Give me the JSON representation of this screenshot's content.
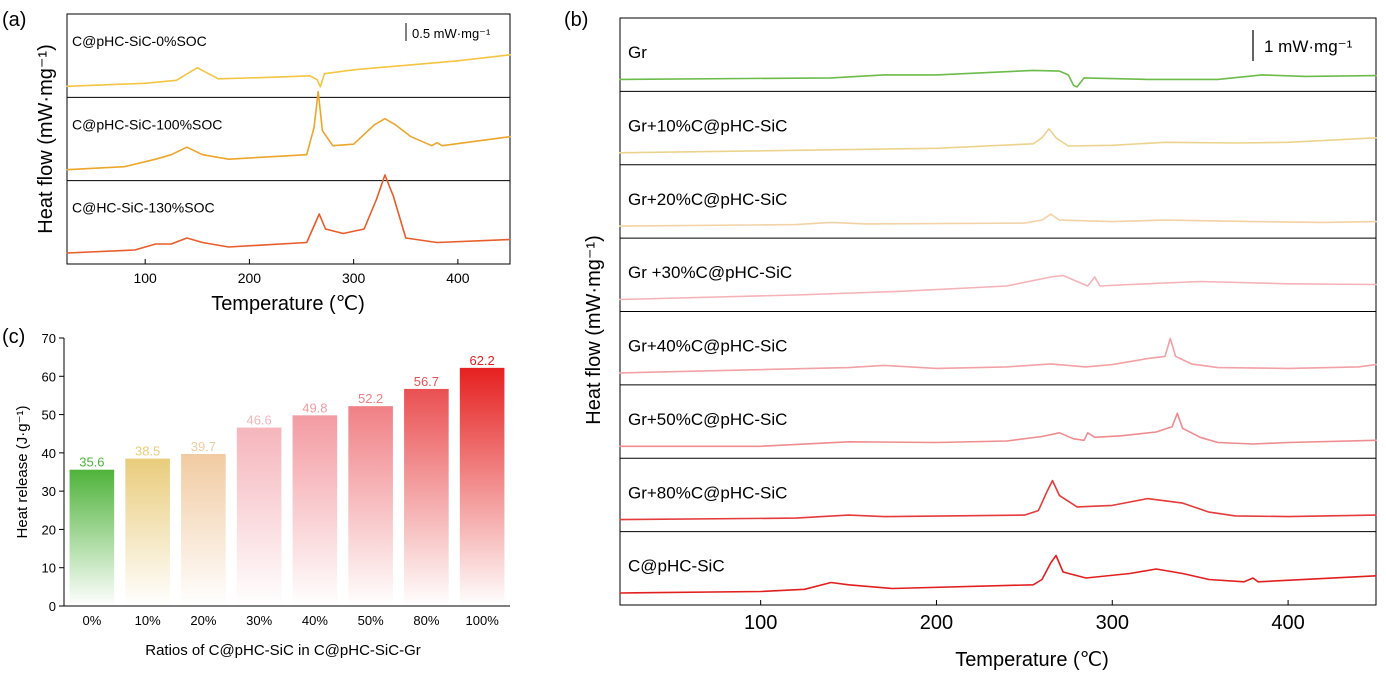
{
  "chart_data": [
    {
      "panel": "(a)",
      "type": "line",
      "xlabel": "Temperature (℃)",
      "ylabel": "Heat flow (mW·mg⁻¹)",
      "xlim": [
        25,
        450
      ],
      "xticks": [
        100,
        200,
        300,
        400
      ],
      "scale_bar": "0.5 mW·mg⁻¹",
      "series": [
        {
          "name": "C@pHC-SiC-0%SOC",
          "color": "#f5c443",
          "points": [
            [
              25,
              0.0
            ],
            [
              100,
              0.1
            ],
            [
              130,
              0.2
            ],
            [
              150,
              0.62
            ],
            [
              170,
              0.25
            ],
            [
              220,
              0.3
            ],
            [
              258,
              0.35
            ],
            [
              265,
              0.22
            ],
            [
              268,
              -0.02
            ],
            [
              272,
              0.42
            ],
            [
              300,
              0.55
            ],
            [
              350,
              0.7
            ],
            [
              400,
              0.85
            ],
            [
              450,
              1.05
            ]
          ]
        },
        {
          "name": "C@pHC-SiC-100%SOC",
          "color": "#eda52a",
          "points": [
            [
              25,
              0.0
            ],
            [
              80,
              0.1
            ],
            [
              110,
              0.35
            ],
            [
              125,
              0.5
            ],
            [
              140,
              0.75
            ],
            [
              155,
              0.5
            ],
            [
              180,
              0.35
            ],
            [
              255,
              0.5
            ],
            [
              262,
              1.4
            ],
            [
              266,
              2.6
            ],
            [
              270,
              1.3
            ],
            [
              280,
              0.8
            ],
            [
              300,
              0.85
            ],
            [
              320,
              1.5
            ],
            [
              330,
              1.7
            ],
            [
              340,
              1.5
            ],
            [
              355,
              1.1
            ],
            [
              375,
              0.8
            ],
            [
              380,
              0.9
            ],
            [
              385,
              0.8
            ],
            [
              450,
              1.1
            ]
          ]
        },
        {
          "name": "C@HC-SiC-130%SOC",
          "color": "#e85c2a",
          "points": [
            [
              25,
              0.0
            ],
            [
              90,
              0.1
            ],
            [
              110,
              0.3
            ],
            [
              125,
              0.3
            ],
            [
              140,
              0.5
            ],
            [
              155,
              0.35
            ],
            [
              180,
              0.2
            ],
            [
              255,
              0.35
            ],
            [
              262,
              0.9
            ],
            [
              267,
              1.3
            ],
            [
              273,
              0.8
            ],
            [
              290,
              0.65
            ],
            [
              310,
              0.8
            ],
            [
              322,
              1.8
            ],
            [
              330,
              2.6
            ],
            [
              338,
              1.9
            ],
            [
              350,
              0.5
            ],
            [
              380,
              0.35
            ],
            [
              450,
              0.45
            ]
          ]
        }
      ]
    },
    {
      "panel": "(b)",
      "type": "line",
      "xlabel": "Temperature (℃)",
      "ylabel": "Heat flow (mW·mg⁻¹)",
      "xlim": [
        20,
        450
      ],
      "xticks": [
        100,
        200,
        300,
        400
      ],
      "scale_bar": "1 mW·mg⁻¹",
      "series": [
        {
          "name": "Gr",
          "color": "#6cbc4a",
          "points": [
            [
              20,
              0.0
            ],
            [
              140,
              0.1
            ],
            [
              170,
              0.3
            ],
            [
              200,
              0.3
            ],
            [
              255,
              0.6
            ],
            [
              270,
              0.55
            ],
            [
              275,
              0.3
            ],
            [
              278,
              -0.4
            ],
            [
              280,
              -0.5
            ],
            [
              284,
              0.1
            ],
            [
              320,
              0.0
            ],
            [
              360,
              0.0
            ],
            [
              385,
              0.3
            ],
            [
              410,
              0.2
            ],
            [
              450,
              0.25
            ]
          ]
        },
        {
          "name": "Gr+10%C@pHC-SiC",
          "color": "#ecd38d",
          "points": [
            [
              20,
              0.0
            ],
            [
              200,
              0.3
            ],
            [
              255,
              0.6
            ],
            [
              260,
              1.0
            ],
            [
              264,
              1.6
            ],
            [
              268,
              1.0
            ],
            [
              275,
              0.45
            ],
            [
              300,
              0.5
            ],
            [
              330,
              0.7
            ],
            [
              370,
              0.65
            ],
            [
              400,
              0.7
            ],
            [
              450,
              1.0
            ]
          ]
        },
        {
          "name": "Gr+20%C@pHC-SiC",
          "color": "#f3d2a6",
          "points": [
            [
              20,
              0.0
            ],
            [
              120,
              0.1
            ],
            [
              140,
              0.25
            ],
            [
              160,
              0.15
            ],
            [
              250,
              0.2
            ],
            [
              260,
              0.4
            ],
            [
              265,
              0.8
            ],
            [
              270,
              0.4
            ],
            [
              300,
              0.3
            ],
            [
              330,
              0.4
            ],
            [
              380,
              0.3
            ],
            [
              420,
              0.25
            ],
            [
              450,
              0.3
            ]
          ]
        },
        {
          "name": "Gr +30%C@pHC-SiC",
          "color": "#f5b3b9",
          "points": [
            [
              20,
              0.0
            ],
            [
              120,
              0.3
            ],
            [
              180,
              0.55
            ],
            [
              240,
              0.9
            ],
            [
              265,
              1.5
            ],
            [
              272,
              1.6
            ],
            [
              280,
              1.2
            ],
            [
              286,
              0.9
            ],
            [
              290,
              1.5
            ],
            [
              293,
              0.9
            ],
            [
              310,
              1.0
            ],
            [
              350,
              1.2
            ],
            [
              400,
              1.05
            ],
            [
              450,
              1.0
            ]
          ]
        },
        {
          "name": "Gr+40%C@pHC-SiC",
          "color": "#f2a1a6",
          "points": [
            [
              20,
              0.0
            ],
            [
              150,
              0.35
            ],
            [
              170,
              0.5
            ],
            [
              200,
              0.3
            ],
            [
              240,
              0.4
            ],
            [
              265,
              0.6
            ],
            [
              285,
              0.4
            ],
            [
              300,
              0.55
            ],
            [
              320,
              0.95
            ],
            [
              330,
              1.1
            ],
            [
              333,
              2.3
            ],
            [
              336,
              1.1
            ],
            [
              345,
              0.6
            ],
            [
              360,
              0.35
            ],
            [
              400,
              0.3
            ],
            [
              440,
              0.4
            ],
            [
              450,
              0.55
            ]
          ]
        },
        {
          "name": "Gr+50%C@pHC-SiC",
          "color": "#ef8c8f",
          "points": [
            [
              20,
              0.0
            ],
            [
              100,
              0.0
            ],
            [
              150,
              0.3
            ],
            [
              200,
              0.25
            ],
            [
              240,
              0.35
            ],
            [
              260,
              0.65
            ],
            [
              270,
              0.9
            ],
            [
              278,
              0.5
            ],
            [
              284,
              0.4
            ],
            [
              286,
              0.9
            ],
            [
              290,
              0.6
            ],
            [
              305,
              0.7
            ],
            [
              325,
              0.95
            ],
            [
              334,
              1.3
            ],
            [
              337,
              2.2
            ],
            [
              340,
              1.2
            ],
            [
              350,
              0.6
            ],
            [
              360,
              0.25
            ],
            [
              380,
              0.15
            ],
            [
              400,
              0.25
            ],
            [
              450,
              0.4
            ]
          ]
        },
        {
          "name": "Gr+80%C@pHC-SiC",
          "color": "#e53b3b",
          "points": [
            [
              20,
              0.0
            ],
            [
              120,
              0.1
            ],
            [
              150,
              0.3
            ],
            [
              170,
              0.2
            ],
            [
              250,
              0.3
            ],
            [
              258,
              0.6
            ],
            [
              263,
              1.9
            ],
            [
              266,
              2.6
            ],
            [
              270,
              1.6
            ],
            [
              280,
              0.85
            ],
            [
              300,
              0.95
            ],
            [
              320,
              1.4
            ],
            [
              340,
              1.1
            ],
            [
              355,
              0.5
            ],
            [
              370,
              0.25
            ],
            [
              400,
              0.2
            ],
            [
              450,
              0.3
            ]
          ]
        },
        {
          "name": "C@pHC-SiC",
          "color": "#e21f1f",
          "points": [
            [
              20,
              0.0
            ],
            [
              100,
              0.1
            ],
            [
              125,
              0.25
            ],
            [
              140,
              0.7
            ],
            [
              150,
              0.55
            ],
            [
              175,
              0.3
            ],
            [
              255,
              0.55
            ],
            [
              260,
              0.9
            ],
            [
              265,
              2.0
            ],
            [
              268,
              2.5
            ],
            [
              272,
              1.4
            ],
            [
              285,
              1.0
            ],
            [
              310,
              1.3
            ],
            [
              325,
              1.6
            ],
            [
              340,
              1.3
            ],
            [
              355,
              0.9
            ],
            [
              375,
              0.75
            ],
            [
              380,
              1.0
            ],
            [
              383,
              0.75
            ],
            [
              450,
              1.15
            ]
          ]
        }
      ]
    },
    {
      "panel": "(c)",
      "type": "bar",
      "xlabel": "Ratios of C@pHC-SiC in C@pHC-SiC-Gr",
      "ylabel": "Heat release (J·g⁻¹)",
      "ylim": [
        0,
        70
      ],
      "yticks": [
        0,
        10,
        20,
        30,
        40,
        50,
        60,
        70
      ],
      "categories": [
        "0%",
        "10%",
        "20%",
        "30%",
        "40%",
        "50%",
        "80%",
        "100%"
      ],
      "values": [
        35.6,
        38.5,
        39.7,
        46.6,
        49.8,
        52.2,
        56.7,
        62.2
      ],
      "colors": [
        "#4fb33a",
        "#e9cc7c",
        "#f1cba2",
        "#f5b5bc",
        "#f39ba2",
        "#f08085",
        "#ea5052",
        "#e62020"
      ]
    }
  ],
  "panels": [
    {
      "label": "(a)"
    },
    {
      "label": "(b)"
    },
    {
      "label": "(c)"
    }
  ]
}
